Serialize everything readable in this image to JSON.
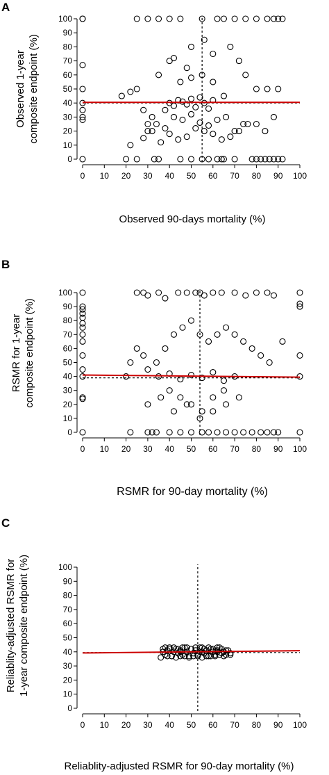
{
  "colors": {
    "points": "#000000",
    "fit_line": "#cc0000",
    "ref_line": "#000000"
  },
  "chart_data": [
    {
      "type": "scatter",
      "panel_label": "A",
      "title": "",
      "xlabel": "Observed 90-days mortality (%)",
      "ylabel_line1": "Observed 1-year",
      "ylabel_line2": "composite endpoint (%)",
      "xlim": [
        0,
        100
      ],
      "ylim": [
        0,
        100
      ],
      "xticks": [
        0,
        10,
        20,
        30,
        40,
        50,
        60,
        70,
        80,
        90,
        100
      ],
      "yticks": [
        0,
        10,
        20,
        30,
        40,
        50,
        60,
        70,
        80,
        90,
        100
      ],
      "grid": false,
      "x_ref_vline": 55,
      "y_ref_hline": 40,
      "fit_line": {
        "x": [
          0,
          100
        ],
        "y": [
          40.5,
          40.5
        ]
      },
      "series": [
        {
          "x": [
            0,
            0,
            0,
            0,
            0,
            0,
            0,
            0,
            20,
            25,
            33,
            35,
            45,
            50,
            55,
            58,
            62,
            64,
            65,
            70,
            78,
            80,
            82,
            84,
            86,
            88,
            90,
            92,
            0,
            25,
            30,
            35,
            40,
            45,
            55,
            62,
            65,
            70,
            75,
            80,
            85,
            88,
            90,
            92,
            18,
            22,
            25,
            28,
            30,
            32,
            35,
            40,
            42,
            48,
            50,
            56,
            60,
            68,
            72,
            75,
            80,
            85,
            90,
            40,
            42,
            44,
            46,
            48,
            50,
            52,
            54,
            56,
            58,
            60,
            38,
            45,
            50,
            55,
            60,
            65,
            30,
            34,
            38,
            42,
            46,
            50,
            54,
            58,
            62,
            66,
            70,
            74,
            22,
            28,
            32,
            36,
            40,
            44,
            48,
            52,
            56,
            60,
            64,
            68,
            72,
            76,
            80,
            84,
            88
          ],
          "y": [
            100,
            67,
            50,
            40,
            35,
            30,
            28,
            0,
            0,
            0,
            0,
            0,
            0,
            0,
            0,
            0,
            0,
            0,
            0,
            0,
            0,
            0,
            0,
            0,
            0,
            0,
            0,
            0,
            100,
            100,
            100,
            100,
            100,
            100,
            100,
            100,
            100,
            100,
            100,
            100,
            100,
            100,
            100,
            100,
            45,
            48,
            50,
            35,
            25,
            30,
            60,
            70,
            72,
            65,
            80,
            85,
            75,
            80,
            70,
            60,
            50,
            50,
            50,
            40,
            38,
            42,
            41,
            39,
            43,
            37,
            44,
            40,
            36,
            42,
            35,
            55,
            58,
            60,
            55,
            45,
            20,
            25,
            22,
            30,
            28,
            32,
            26,
            24,
            28,
            30,
            20,
            25,
            10,
            15,
            20,
            12,
            18,
            14,
            16,
            22,
            20,
            18,
            14,
            16,
            20,
            25,
            25,
            20,
            30
          ]
        }
      ]
    },
    {
      "type": "scatter",
      "panel_label": "B",
      "title": "",
      "xlabel": "RSMR for 90-day mortality (%)",
      "ylabel_line1": "RSMR for 1-year",
      "ylabel_line2": "composite endpoint (%)",
      "xlim": [
        0,
        100
      ],
      "ylim": [
        0,
        100
      ],
      "xticks": [
        0,
        10,
        20,
        30,
        40,
        50,
        60,
        70,
        80,
        90,
        100
      ],
      "yticks": [
        0,
        10,
        20,
        30,
        40,
        50,
        60,
        70,
        80,
        90,
        100
      ],
      "grid": false,
      "x_ref_vline": 54,
      "y_ref_hline": 39,
      "fit_line": {
        "x": [
          0,
          100
        ],
        "y": [
          41,
          39.5
        ]
      },
      "series": [
        {
          "x": [
            0,
            0,
            0,
            0,
            0,
            0,
            0,
            0,
            0,
            0,
            0,
            0,
            0,
            0,
            0,
            100,
            100,
            100,
            100,
            100,
            100,
            22,
            30,
            32,
            34,
            40,
            45,
            50,
            55,
            58,
            62,
            66,
            70,
            74,
            78,
            82,
            85,
            88,
            90,
            25,
            28,
            30,
            35,
            38,
            44,
            48,
            52,
            54,
            56,
            60,
            64,
            70,
            75,
            80,
            85,
            88,
            20,
            22,
            25,
            28,
            30,
            34,
            38,
            42,
            46,
            50,
            54,
            58,
            62,
            66,
            70,
            74,
            78,
            82,
            86,
            92,
            35,
            40,
            45,
            50,
            55,
            60,
            65,
            70,
            40,
            45,
            50,
            55,
            60,
            65,
            30,
            36,
            42,
            48,
            54,
            60,
            66,
            72
          ],
          "y": [
            100,
            90,
            88,
            85,
            82,
            78,
            75,
            70,
            65,
            55,
            45,
            40,
            25,
            24,
            0,
            100,
            92,
            90,
            55,
            40,
            0,
            0,
            0,
            0,
            0,
            0,
            0,
            0,
            0,
            0,
            0,
            0,
            0,
            0,
            0,
            0,
            0,
            0,
            0,
            100,
            100,
            98,
            100,
            96,
            100,
            100,
            100,
            100,
            98,
            100,
            100,
            100,
            98,
            100,
            100,
            98,
            40,
            50,
            60,
            55,
            45,
            50,
            60,
            70,
            75,
            80,
            70,
            65,
            70,
            75,
            70,
            65,
            60,
            55,
            50,
            65,
            40,
            42,
            38,
            41,
            39,
            43,
            37,
            40,
            30,
            25,
            20,
            15,
            25,
            30,
            20,
            25,
            15,
            20,
            10,
            15,
            20,
            25
          ]
        }
      ]
    },
    {
      "type": "scatter",
      "panel_label": "C",
      "title": "",
      "xlabel": "Reliablity-adjusted RSMR for 90-day mortality (%)",
      "ylabel_line1": "Reliablity-adjusted RSMR for",
      "ylabel_line2": "1-year composite endpoint (%)",
      "xlim": [
        0,
        100
      ],
      "ylim": [
        0,
        100
      ],
      "xticks": [
        0,
        10,
        20,
        30,
        40,
        50,
        60,
        70,
        80,
        90,
        100
      ],
      "yticks": [
        0,
        10,
        20,
        30,
        40,
        50,
        60,
        70,
        80,
        90,
        100
      ],
      "grid": false,
      "x_ref_vline": 53,
      "y_ref_hline": 39.5,
      "fit_line": {
        "x": [
          0,
          100
        ],
        "y": [
          39.2,
          40.8
        ]
      },
      "series": [
        {
          "x": [
            36,
            37,
            38,
            39,
            40,
            41,
            42,
            43,
            44,
            45,
            46,
            47,
            48,
            49,
            50,
            51,
            52,
            53,
            54,
            55,
            56,
            57,
            58,
            59,
            60,
            61,
            62,
            63,
            64,
            65,
            66,
            67,
            68,
            38,
            40,
            42,
            44,
            46,
            48,
            50,
            52,
            54,
            56,
            58,
            60,
            62,
            64,
            66,
            39,
            41,
            43,
            45,
            47,
            49,
            51,
            53,
            55,
            57,
            59,
            61,
            63,
            65,
            37,
            45,
            55,
            62,
            68
          ],
          "y": [
            36,
            42,
            38,
            41,
            43,
            37,
            40,
            42,
            39,
            41,
            38,
            43,
            40,
            37,
            42,
            39,
            41,
            38,
            40,
            43,
            39,
            41,
            37,
            42,
            40,
            38,
            41,
            43,
            39,
            40,
            38,
            41,
            39,
            43,
            42,
            43,
            42,
            43,
            43,
            42,
            43,
            43,
            42,
            43,
            42,
            43,
            42,
            41,
            37,
            37,
            36,
            37,
            37,
            36,
            37,
            37,
            36,
            37,
            37,
            37,
            38,
            37,
            40,
            40,
            40,
            40,
            38
          ]
        }
      ]
    }
  ]
}
